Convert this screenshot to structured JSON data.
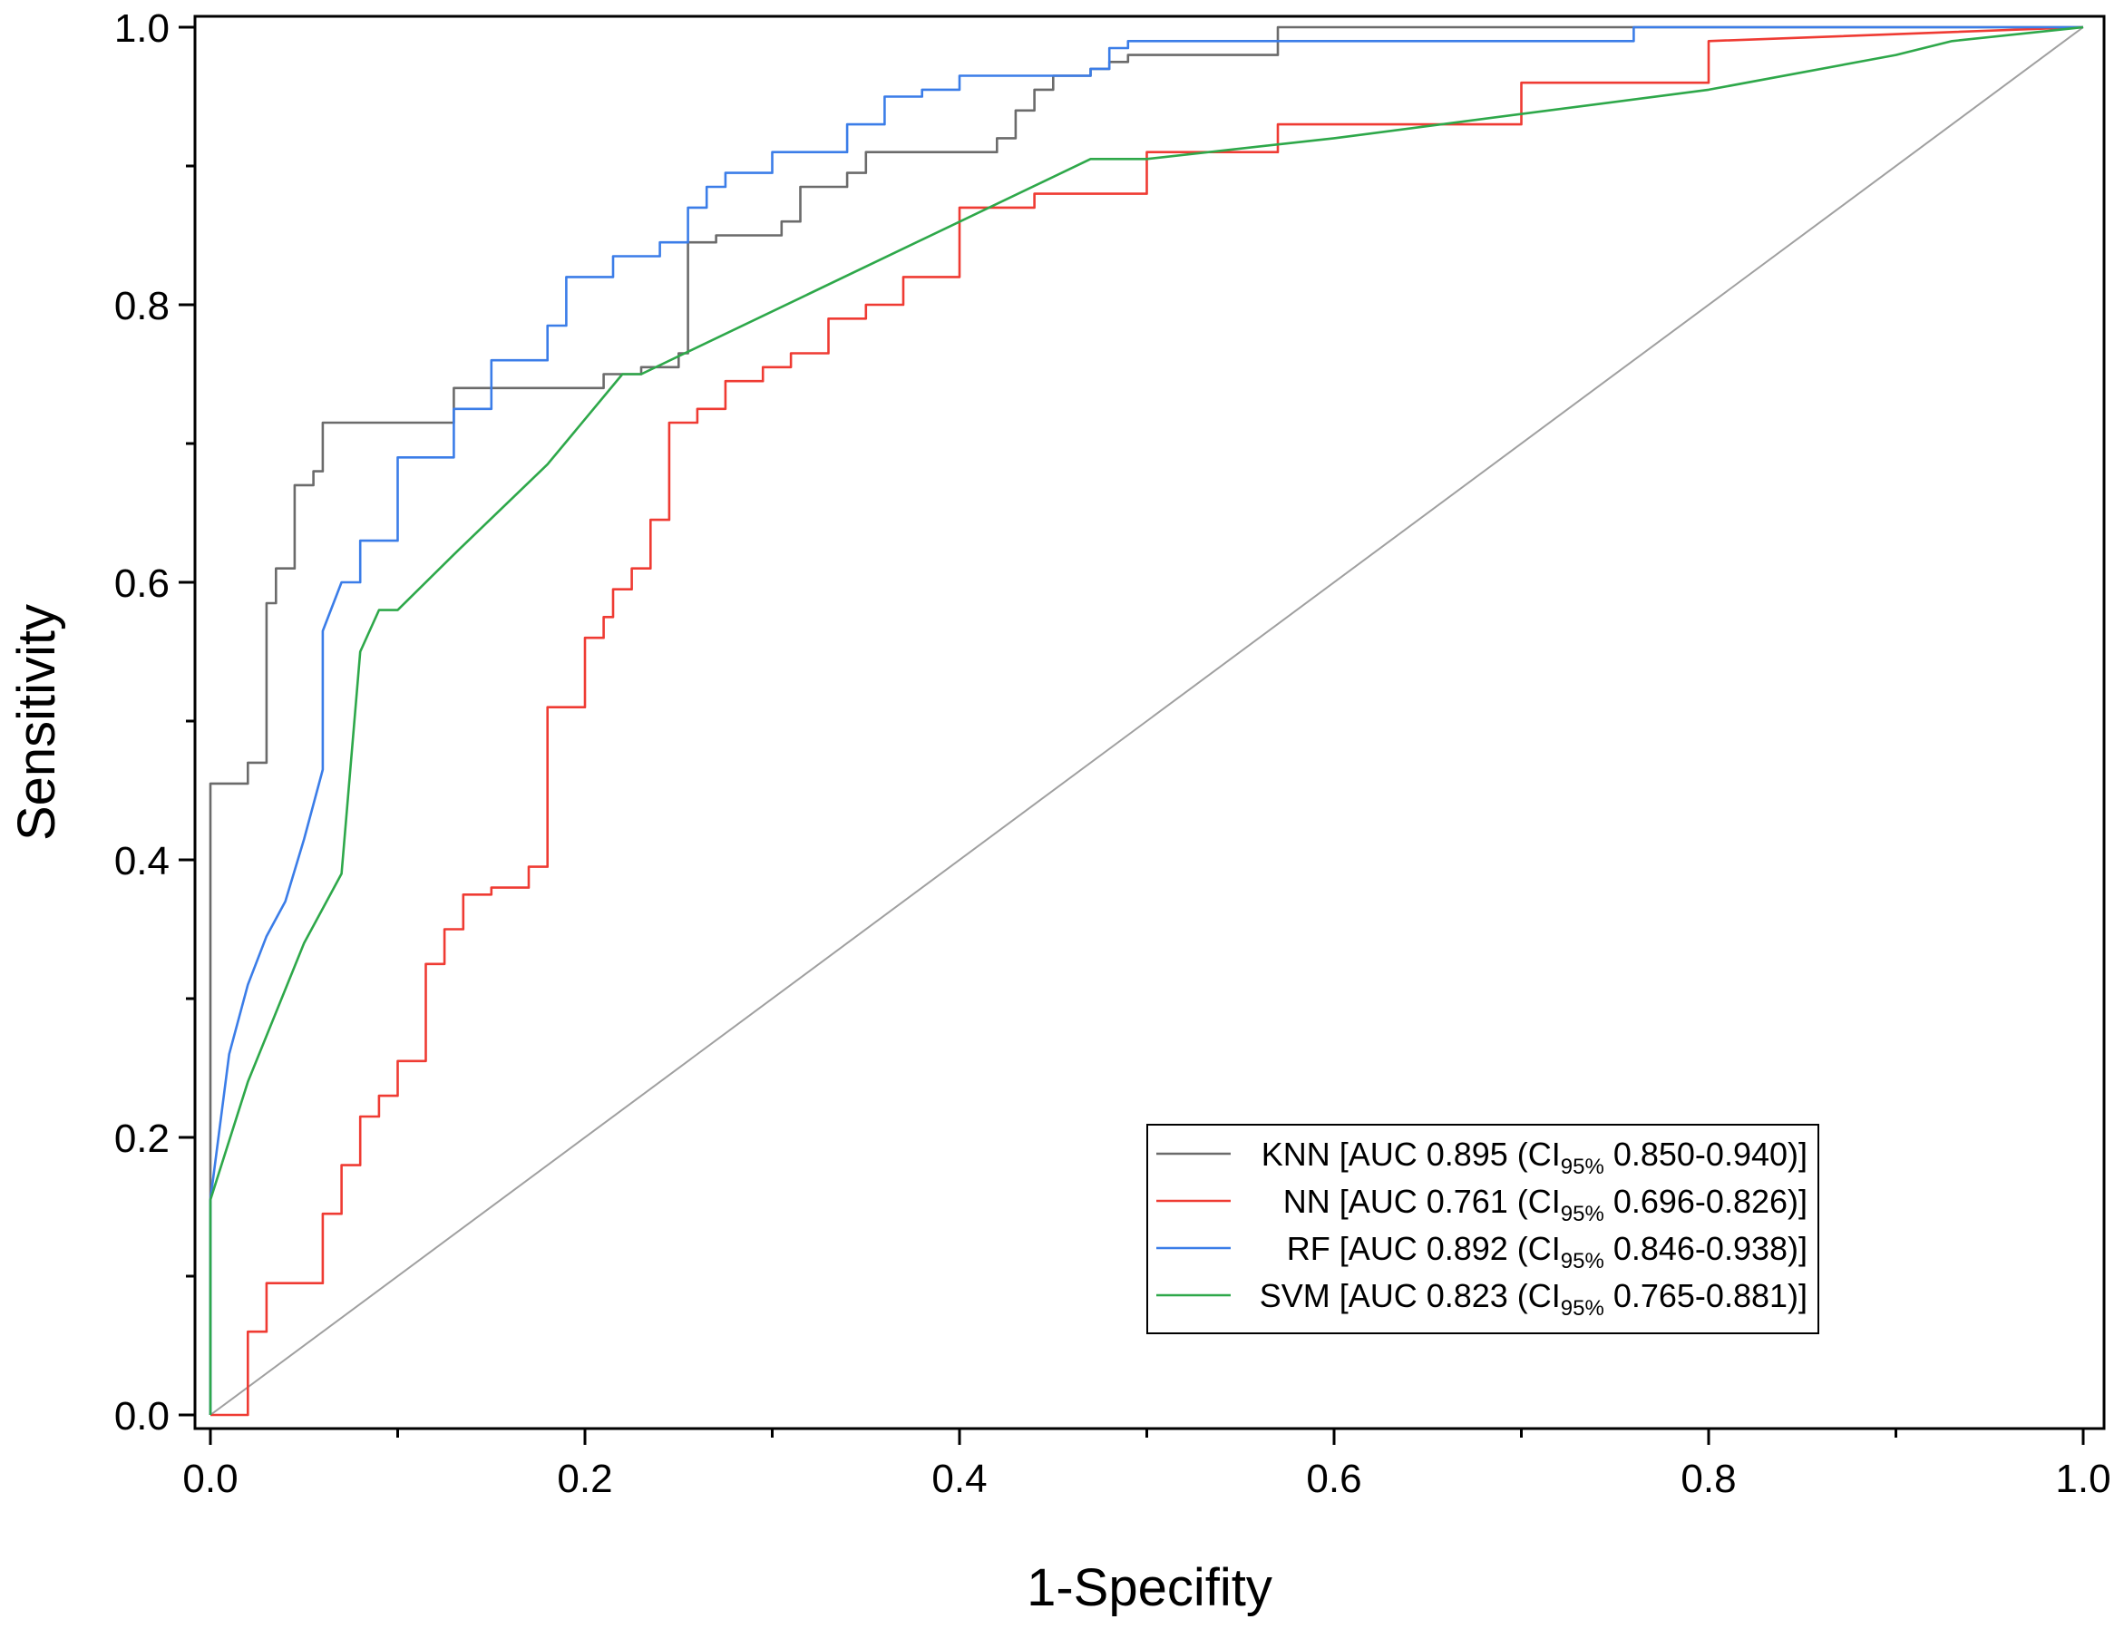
{
  "chart_data": {
    "type": "line",
    "title": "",
    "xlabel": "1-Specifity",
    "ylabel": "Sensitivity",
    "xlim": [
      0,
      1
    ],
    "ylim": [
      0,
      1
    ],
    "x_ticks": [
      "0.0",
      "0.2",
      "0.4",
      "0.6",
      "0.8",
      "1.0"
    ],
    "y_ticks": [
      "0.0",
      "0.2",
      "0.4",
      "0.6",
      "0.8",
      "1.0"
    ],
    "x_tick_values": [
      0,
      0.2,
      0.4,
      0.6,
      0.8,
      1.0
    ],
    "y_tick_values": [
      0,
      0.2,
      0.4,
      0.6,
      0.8,
      1.0
    ],
    "legend_position": "bottom-right",
    "reference_line": {
      "name": "chance",
      "color": "#a0a0a0",
      "x": [
        0,
        1
      ],
      "y": [
        0,
        1
      ]
    },
    "series": [
      {
        "name": "KNN",
        "label_pre": "KNN [AUC 0.895 (CI",
        "label_sub": "95%",
        "label_post": " 0.850-0.940)]",
        "color": "#6b6b6b",
        "x": [
          0,
          0,
          0.02,
          0.02,
          0.03,
          0.03,
          0.035,
          0.035,
          0.045,
          0.045,
          0.055,
          0.055,
          0.06,
          0.06,
          0.13,
          0.13,
          0.21,
          0.21,
          0.23,
          0.23,
          0.25,
          0.25,
          0.255,
          0.255,
          0.27,
          0.27,
          0.305,
          0.305,
          0.315,
          0.315,
          0.34,
          0.34,
          0.35,
          0.35,
          0.42,
          0.42,
          0.43,
          0.43,
          0.44,
          0.44,
          0.45,
          0.45,
          0.47,
          0.47,
          0.48,
          0.48,
          0.49,
          0.49,
          0.5,
          0.5,
          0.57,
          0.57,
          1.0
        ],
        "y": [
          0,
          0.455,
          0.455,
          0.47,
          0.47,
          0.585,
          0.585,
          0.61,
          0.61,
          0.67,
          0.67,
          0.68,
          0.68,
          0.715,
          0.715,
          0.74,
          0.74,
          0.75,
          0.75,
          0.755,
          0.755,
          0.765,
          0.765,
          0.845,
          0.845,
          0.85,
          0.85,
          0.86,
          0.86,
          0.885,
          0.885,
          0.895,
          0.895,
          0.91,
          0.91,
          0.92,
          0.92,
          0.94,
          0.94,
          0.955,
          0.955,
          0.965,
          0.965,
          0.97,
          0.97,
          0.975,
          0.975,
          0.98,
          0.98,
          0.98,
          0.98,
          1.0,
          1.0
        ]
      },
      {
        "name": "NN",
        "label_pre": "NN [AUC 0.761 (CI",
        "label_sub": "95%",
        "label_post": " 0.696-0.826)]",
        "color": "#ef3b33",
        "x": [
          0,
          0.02,
          0.02,
          0.03,
          0.03,
          0.06,
          0.06,
          0.07,
          0.07,
          0.08,
          0.08,
          0.09,
          0.09,
          0.1,
          0.1,
          0.115,
          0.115,
          0.125,
          0.125,
          0.135,
          0.135,
          0.15,
          0.15,
          0.17,
          0.17,
          0.18,
          0.18,
          0.2,
          0.2,
          0.21,
          0.21,
          0.215,
          0.215,
          0.225,
          0.225,
          0.235,
          0.235,
          0.245,
          0.245,
          0.26,
          0.26,
          0.275,
          0.275,
          0.295,
          0.295,
          0.31,
          0.31,
          0.33,
          0.33,
          0.35,
          0.35,
          0.37,
          0.37,
          0.4,
          0.4,
          0.44,
          0.44,
          0.5,
          0.5,
          0.57,
          0.57,
          0.7,
          0.7,
          0.8,
          0.8,
          1.0
        ],
        "y": [
          0,
          0,
          0.06,
          0.06,
          0.095,
          0.095,
          0.145,
          0.145,
          0.18,
          0.18,
          0.215,
          0.215,
          0.23,
          0.23,
          0.255,
          0.255,
          0.325,
          0.325,
          0.35,
          0.35,
          0.375,
          0.375,
          0.38,
          0.38,
          0.395,
          0.395,
          0.51,
          0.51,
          0.56,
          0.56,
          0.575,
          0.575,
          0.595,
          0.595,
          0.61,
          0.61,
          0.645,
          0.645,
          0.715,
          0.715,
          0.725,
          0.725,
          0.745,
          0.745,
          0.755,
          0.755,
          0.765,
          0.765,
          0.79,
          0.79,
          0.8,
          0.8,
          0.82,
          0.82,
          0.87,
          0.87,
          0.88,
          0.88,
          0.91,
          0.91,
          0.93,
          0.93,
          0.96,
          0.96,
          0.99,
          1.0
        ]
      },
      {
        "name": "RF",
        "label_pre": "RF [AUC 0.892 (CI",
        "label_sub": "95%",
        "label_post": " 0.846-0.938)]",
        "color": "#3b7de8",
        "x": [
          0,
          0,
          0.01,
          0.02,
          0.03,
          0.04,
          0.05,
          0.06,
          0.06,
          0.07,
          0.08,
          0.08,
          0.1,
          0.1,
          0.13,
          0.13,
          0.15,
          0.15,
          0.18,
          0.18,
          0.19,
          0.19,
          0.215,
          0.215,
          0.24,
          0.24,
          0.255,
          0.255,
          0.265,
          0.265,
          0.275,
          0.275,
          0.3,
          0.3,
          0.34,
          0.34,
          0.36,
          0.36,
          0.38,
          0.38,
          0.4,
          0.4,
          0.47,
          0.47,
          0.48,
          0.48,
          0.49,
          0.49,
          0.76,
          0.76,
          1.0
        ],
        "y": [
          0,
          0.155,
          0.26,
          0.31,
          0.345,
          0.37,
          0.415,
          0.465,
          0.565,
          0.6,
          0.6,
          0.63,
          0.63,
          0.69,
          0.69,
          0.725,
          0.725,
          0.76,
          0.76,
          0.785,
          0.785,
          0.82,
          0.82,
          0.835,
          0.835,
          0.845,
          0.845,
          0.87,
          0.87,
          0.885,
          0.885,
          0.895,
          0.895,
          0.91,
          0.91,
          0.93,
          0.93,
          0.95,
          0.95,
          0.955,
          0.955,
          0.965,
          0.965,
          0.97,
          0.97,
          0.985,
          0.985,
          0.99,
          0.99,
          1.0,
          1.0
        ]
      },
      {
        "name": "SVM",
        "label_pre": "SVM [AUC 0.823 (CI",
        "label_sub": "95%",
        "label_post": " 0.765-0.881)]",
        "color": "#2ea84a",
        "x": [
          0,
          0,
          0.02,
          0.05,
          0.07,
          0.08,
          0.09,
          0.1,
          0.13,
          0.18,
          0.22,
          0.23,
          0.47,
          0.5,
          0.6,
          0.8,
          0.9,
          0.93,
          1.0
        ],
        "y": [
          0,
          0.155,
          0.24,
          0.34,
          0.39,
          0.55,
          0.58,
          0.58,
          0.62,
          0.685,
          0.75,
          0.75,
          0.905,
          0.905,
          0.92,
          0.955,
          0.98,
          0.99,
          1.0
        ]
      }
    ]
  }
}
